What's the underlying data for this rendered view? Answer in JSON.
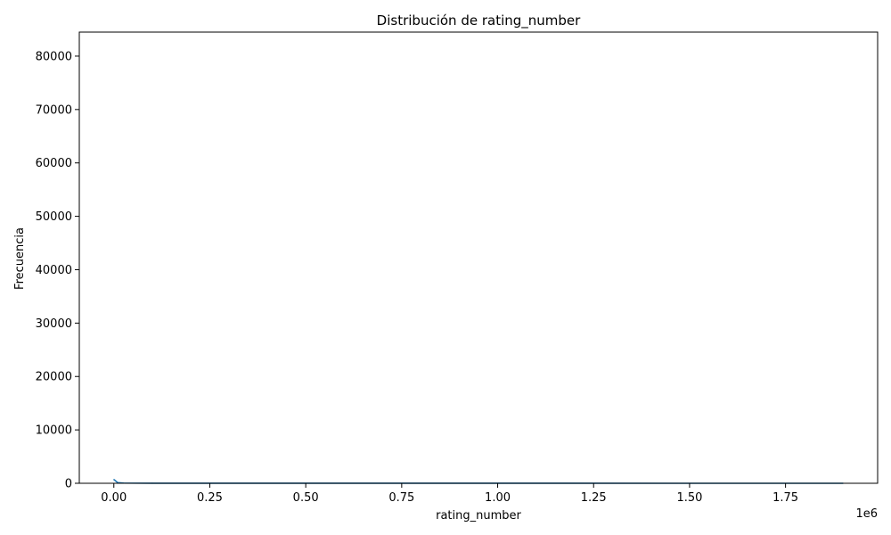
{
  "chart_data": {
    "type": "area",
    "title": "Distribución de rating_number",
    "xlabel": "rating_number",
    "ylabel": "Frecuencia",
    "x_offset_label": "1e6",
    "xlim": [
      -90000,
      1990000
    ],
    "ylim": [
      0,
      84500
    ],
    "x_ticks": [
      0,
      250000,
      500000,
      750000,
      1000000,
      1250000,
      1500000,
      1750000
    ],
    "x_tick_labels": [
      "0.00",
      "0.25",
      "0.50",
      "0.75",
      "1.00",
      "1.25",
      "1.50",
      "1.75"
    ],
    "y_ticks": [
      0,
      10000,
      20000,
      30000,
      40000,
      50000,
      60000,
      70000,
      80000
    ],
    "y_tick_labels": [
      "0",
      "10000",
      "20000",
      "30000",
      "40000",
      "50000",
      "60000",
      "70000",
      "80000"
    ],
    "grid": false,
    "series": [
      {
        "color": "#1f77b4",
        "x": [
          0,
          10000,
          25000,
          100000,
          500000,
          1000000,
          1500000,
          1900000
        ],
        "y": [
          700,
          120,
          40,
          15,
          5,
          3,
          2,
          1
        ]
      }
    ]
  }
}
